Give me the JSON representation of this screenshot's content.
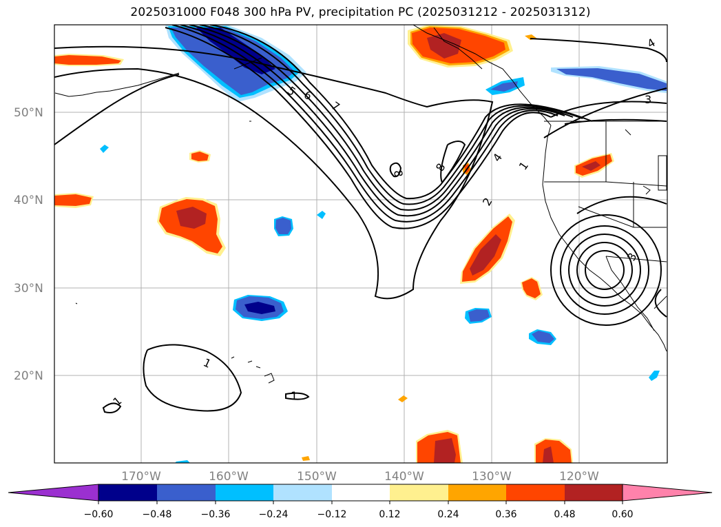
{
  "title": "2025031000 F048 300 hPa PV, precipitation PC (2025031212 - 2025031312)",
  "lat_labels": [
    "50°N",
    "40°N",
    "30°N",
    "20°N"
  ],
  "lon_labels": [
    "170°W",
    "160°W",
    "150°W",
    "140°W",
    "130°W",
    "120°W"
  ],
  "contour_labels": [
    "5",
    "6",
    "7",
    "8",
    "8",
    "4",
    "1",
    "2",
    "1",
    "1",
    "1",
    "3",
    "3",
    "4"
  ],
  "colorbar": {
    "ticks": [
      "−0.60",
      "−0.48",
      "−0.36",
      "−0.24",
      "−0.12",
      "0.12",
      "0.24",
      "0.36",
      "0.48",
      "0.60"
    ],
    "colors": [
      "#9b30d0",
      "#00008b",
      "#3a5fcd",
      "#00bfff",
      "#b0e2ff",
      "#ffffff",
      "#fff08f",
      "#ffa500",
      "#ff4500",
      "#b22222",
      "#ff82ab"
    ]
  }
}
